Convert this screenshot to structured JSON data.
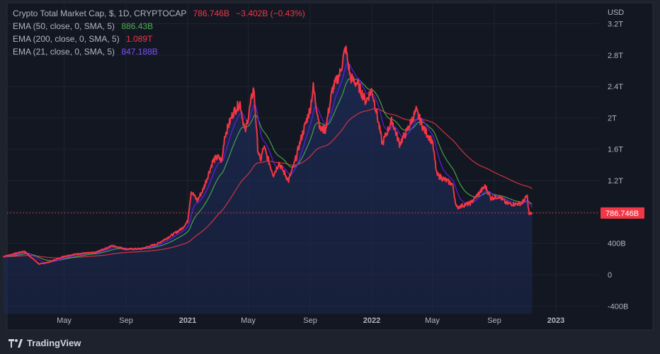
{
  "legend": {
    "title": "Crypto Total Market Cap, $, 1D, CRYPTOCAP",
    "last": "786.746B",
    "change": "−3.402B (−0.43%)",
    "ema50_label": "EMA (50, close, 0, SMA, 5)",
    "ema50_value": "886.43B",
    "ema200_label": "EMA (200, close, 0, SMA, 5)",
    "ema200_value": "1.089T",
    "ema21_label": "EMA (21, close, 0, SMA, 5)",
    "ema21_value": "847.188B"
  },
  "footer": {
    "brand": "TradingView"
  },
  "colors": {
    "background": "#131722",
    "price_line": "#f23645",
    "ema50": "#4caf50",
    "ema200": "#f23645",
    "ema21": "#651fff",
    "area_fill": "#1c2a55",
    "last_label_bg": "#f23645"
  },
  "chart_data": {
    "type": "line",
    "title": "Crypto Total Market Cap, $, 1D, CRYPTOCAP",
    "ylabel": "USD",
    "yunit": "billion USD",
    "ylim": [
      -500,
      3300
    ],
    "y_ticks": [
      {
        "value": 3200,
        "label": "3.2T"
      },
      {
        "value": 2800,
        "label": "2.8T"
      },
      {
        "value": 2400,
        "label": "2.4T"
      },
      {
        "value": 2000,
        "label": "2T"
      },
      {
        "value": 1600,
        "label": "1.6T"
      },
      {
        "value": 1200,
        "label": "1.2T"
      },
      {
        "value": 400,
        "label": "400B"
      },
      {
        "value": 0,
        "label": "0"
      },
      {
        "value": -400,
        "label": "-400B"
      }
    ],
    "x_ticks": [
      {
        "date": "2020-05-01",
        "label": "May"
      },
      {
        "date": "2020-09-01",
        "label": "Sep"
      },
      {
        "date": "2021-01-01",
        "label": "2021"
      },
      {
        "date": "2021-05-01",
        "label": "May"
      },
      {
        "date": "2021-09-01",
        "label": "Sep"
      },
      {
        "date": "2022-01-01",
        "label": "2022"
      },
      {
        "date": "2022-05-01",
        "label": "May"
      },
      {
        "date": "2022-09-01",
        "label": "Sep"
      },
      {
        "date": "2023-01-01",
        "label": "2023"
      }
    ],
    "grid": true,
    "last_value_label": "786.746B",
    "last_value": 786.746,
    "series": [
      {
        "name": "Crypto Total Market Cap",
        "role": "close",
        "points": [
          [
            "2020-01-01",
            230
          ],
          [
            "2020-02-12",
            298
          ],
          [
            "2020-03-13",
            135
          ],
          [
            "2020-04-01",
            160
          ],
          [
            "2020-05-01",
            235
          ],
          [
            "2020-06-01",
            270
          ],
          [
            "2020-07-01",
            280
          ],
          [
            "2020-08-05",
            370
          ],
          [
            "2020-09-01",
            325
          ],
          [
            "2020-10-01",
            330
          ],
          [
            "2020-11-01",
            390
          ],
          [
            "2020-12-01",
            505
          ],
          [
            "2020-12-20",
            585
          ],
          [
            "2021-01-01",
            680
          ],
          [
            "2021-01-08",
            1065
          ],
          [
            "2021-01-20",
            945
          ],
          [
            "2021-02-01",
            1090
          ],
          [
            "2021-02-20",
            1450
          ],
          [
            "2021-03-01",
            1500
          ],
          [
            "2021-03-10",
            1450
          ],
          [
            "2021-03-15",
            1760
          ],
          [
            "2021-04-01",
            2060
          ],
          [
            "2021-04-15",
            2190
          ],
          [
            "2021-04-25",
            1810
          ],
          [
            "2021-05-12",
            2390
          ],
          [
            "2021-05-20",
            1610
          ],
          [
            "2021-05-25",
            1450
          ],
          [
            "2021-06-01",
            1630
          ],
          [
            "2021-06-20",
            1275
          ],
          [
            "2021-07-01",
            1425
          ],
          [
            "2021-07-20",
            1200
          ],
          [
            "2021-08-01",
            1425
          ],
          [
            "2021-08-15",
            1760
          ],
          [
            "2021-09-01",
            2120
          ],
          [
            "2021-09-07",
            2390
          ],
          [
            "2021-09-21",
            1850
          ],
          [
            "2021-10-01",
            1850
          ],
          [
            "2021-10-15",
            2360
          ],
          [
            "2021-10-30",
            2570
          ],
          [
            "2021-11-10",
            2890
          ],
          [
            "2021-11-20",
            2510
          ],
          [
            "2021-12-05",
            2420
          ],
          [
            "2021-12-20",
            2210
          ],
          [
            "2022-01-01",
            2360
          ],
          [
            "2022-01-10",
            2090
          ],
          [
            "2022-01-22",
            1670
          ],
          [
            "2022-02-10",
            1970
          ],
          [
            "2022-02-25",
            1670
          ],
          [
            "2022-03-10",
            1810
          ],
          [
            "2022-03-30",
            2090
          ],
          [
            "2022-04-15",
            1850
          ],
          [
            "2022-05-01",
            1700
          ],
          [
            "2022-05-10",
            1275
          ],
          [
            "2022-05-25",
            1215
          ],
          [
            "2022-06-10",
            1155
          ],
          [
            "2022-06-18",
            855
          ],
          [
            "2022-07-01",
            885
          ],
          [
            "2022-07-15",
            910
          ],
          [
            "2022-08-01",
            1035
          ],
          [
            "2022-08-14",
            1130
          ],
          [
            "2022-08-25",
            975
          ],
          [
            "2022-09-10",
            1000
          ],
          [
            "2022-09-25",
            910
          ],
          [
            "2022-10-10",
            900
          ],
          [
            "2022-10-25",
            910
          ],
          [
            "2022-11-05",
            1000
          ],
          [
            "2022-11-09",
            770
          ],
          [
            "2022-11-15",
            786.746
          ]
        ]
      },
      {
        "name": "EMA (50, close, 0, SMA, 5)",
        "role": "ema",
        "length": 50,
        "last": 886.43
      },
      {
        "name": "EMA (200, close, 0, SMA, 5)",
        "role": "ema",
        "length": 200,
        "last": 1089
      },
      {
        "name": "EMA (21, close, 0, SMA, 5)",
        "role": "ema",
        "length": 21,
        "last": 847.188
      }
    ]
  }
}
